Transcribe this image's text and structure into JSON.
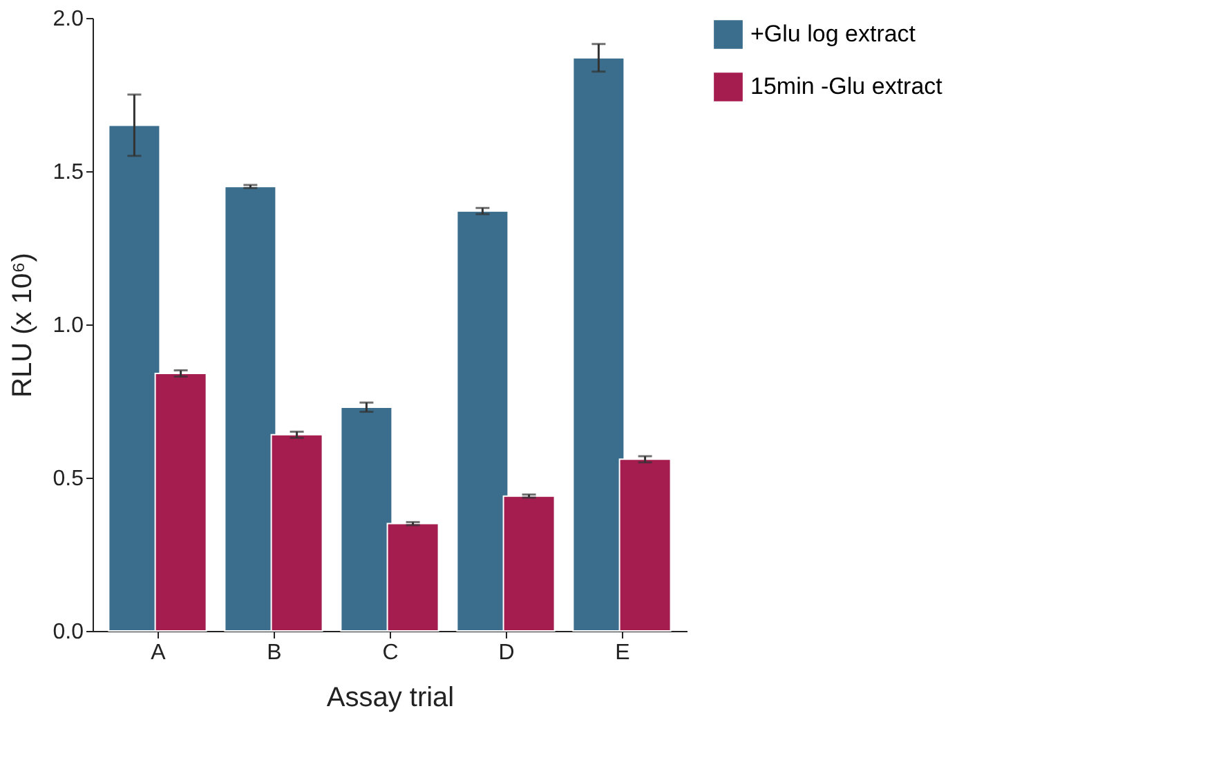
{
  "chart_data": {
    "type": "bar",
    "xlabel": "Assay trial",
    "ylabel": "RLU (x 10⁶)",
    "categories": [
      "A",
      "B",
      "C",
      "D",
      "E"
    ],
    "series": [
      {
        "name": "+Glu log extract",
        "color": "#3b6e8c",
        "values": [
          1.65,
          1.45,
          0.73,
          1.37,
          1.87
        ],
        "errors": [
          0.1,
          0.005,
          0.015,
          0.01,
          0.045
        ]
      },
      {
        "name": "15min -Glu extract",
        "color": "#a51d4f",
        "values": [
          0.84,
          0.64,
          0.35,
          0.44,
          0.56
        ],
        "errors": [
          0.01,
          0.01,
          0.005,
          0.005,
          0.01
        ]
      }
    ],
    "ylim": [
      0,
      2.0
    ],
    "yticks": [
      {
        "value": 0,
        "label": "0.0"
      },
      {
        "value": 0.5,
        "label": "0.5"
      },
      {
        "value": 1.0,
        "label": "1.0"
      },
      {
        "value": 1.5,
        "label": "1.5"
      },
      {
        "value": 2.0,
        "label": "2.0"
      }
    ],
    "grid": false,
    "legend": "top right"
  }
}
